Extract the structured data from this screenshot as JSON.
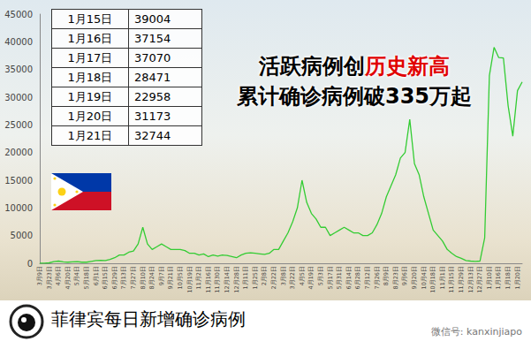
{
  "chart_data": {
    "type": "line",
    "categories": [
      "3月9日",
      null,
      "3月23日",
      null,
      "4月6日",
      null,
      "4月20日",
      null,
      "5月4日",
      null,
      "5月18日",
      null,
      "6月1日",
      null,
      "6月15日",
      null,
      "6月29日",
      null,
      "7月13日",
      null,
      "7月27日",
      null,
      "8月10日",
      null,
      "8月24日",
      null,
      "9月7日",
      null,
      "9月21日",
      null,
      "10月5日",
      null,
      "10月19日",
      null,
      "11月2日",
      null,
      "11月16日",
      null,
      "11月30日",
      null,
      "12月14日",
      null,
      "12月28日",
      null,
      "1月11日",
      null,
      "1月25日",
      null,
      "2月8日",
      null,
      "2月22日",
      null,
      "3月8日",
      null,
      "3月22日",
      null,
      "4月5日",
      null,
      "4月19日",
      null,
      "5月3日",
      null,
      "5月17日",
      null,
      "5月31日",
      null,
      "6月14日",
      null,
      "6月28日",
      null,
      "7月12日",
      null,
      "7月26日",
      null,
      "8月9日",
      null,
      "8月23日",
      null,
      "9月6日",
      null,
      "9月20日",
      null,
      "10月4日",
      null,
      "10月18日",
      null,
      "11月1日",
      null,
      "11月15日",
      null,
      "11月29日",
      null,
      "12月13日",
      null,
      "12月27日",
      null,
      "1月10日",
      null,
      "1月16日",
      null,
      "1月18日",
      null,
      "1月20日",
      null
    ],
    "values": [
      10,
      30,
      80,
      300,
      400,
      250,
      200,
      250,
      300,
      200,
      200,
      350,
      500,
      550,
      500,
      700,
      1000,
      1500,
      1500,
      2000,
      2200,
      3500,
      6500,
      3500,
      2500,
      3000,
      3500,
      3000,
      2500,
      2500,
      2500,
      2300,
      1800,
      1800,
      1500,
      1700,
      1200,
      1500,
      1300,
      1500,
      1400,
      1200,
      1000,
      1500,
      1800,
      1900,
      1800,
      1700,
      1600,
      1800,
      2500,
      2500,
      4000,
      5500,
      7500,
      10000,
      15000,
      11000,
      9000,
      8000,
      6500,
      6500,
      5000,
      5500,
      6000,
      6500,
      6000,
      5500,
      5500,
      5000,
      5000,
      5500,
      7000,
      9000,
      12000,
      14000,
      16000,
      19000,
      20000,
      26000,
      18000,
      16000,
      12000,
      9000,
      6000,
      5000,
      4000,
      2500,
      1800,
      1200,
      900,
      500,
      400,
      350,
      400,
      4600,
      33900,
      39004,
      37154,
      37070,
      28471,
      22958,
      31173,
      32744
    ],
    "color": "#33cc33",
    "ylim": [
      0,
      45000
    ],
    "yticks": [
      0,
      5000,
      10000,
      15000,
      20000,
      25000,
      30000,
      35000,
      40000,
      45000
    ],
    "grid": false
  },
  "table": {
    "rows": [
      [
        "1月15日",
        39004
      ],
      [
        "1月16日",
        37154
      ],
      [
        "1月17日",
        37070
      ],
      [
        "1月18日",
        28471
      ],
      [
        "1月19日",
        22958
      ],
      [
        "1月20日",
        31173
      ],
      [
        "1月21日",
        32744
      ]
    ]
  },
  "headline": [
    [
      "活跃病例创",
      "历史新高"
    ],
    [
      "累计确诊病例破335万起"
    ]
  ],
  "footer": "菲律宾每日新增确诊病例",
  "watermark": "微信号: kanxinjiapo"
}
